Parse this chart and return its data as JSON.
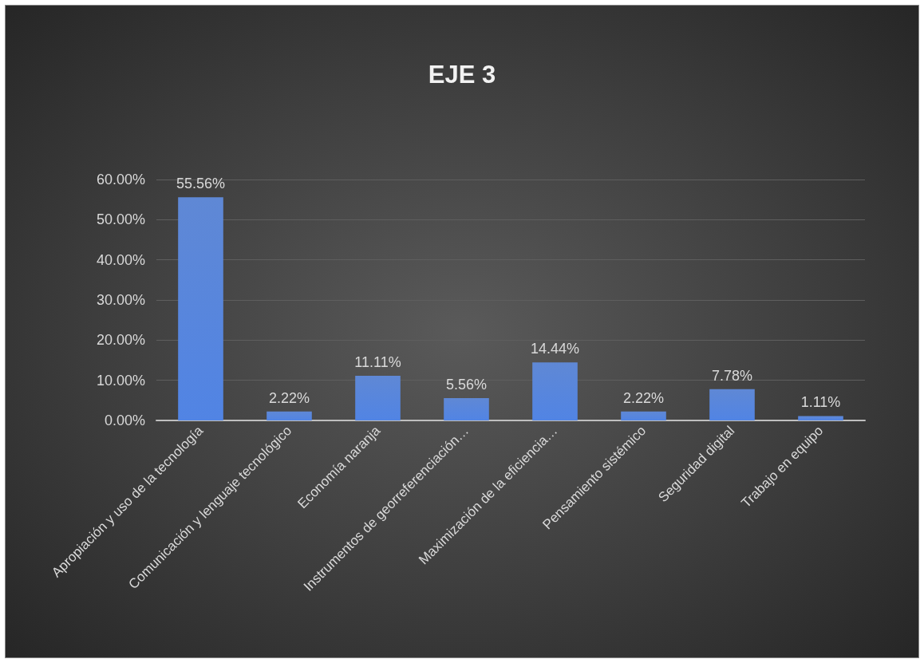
{
  "chart_data": {
    "type": "bar",
    "title": "EJE 3",
    "categories": [
      "Apropiación y uso de la tecnología",
      "Comunicación y lenguaje tecnológico",
      "Economía naranja",
      "Instrumentos de georreferenciación…",
      "Maximización de la eficiencia…",
      "Pensamiento sistémico",
      "Seguridad digital",
      "Trabajo en equipo"
    ],
    "values": [
      55.56,
      2.22,
      11.11,
      5.56,
      14.44,
      2.22,
      7.78,
      1.11
    ],
    "value_labels": [
      "55.56%",
      "2.22%",
      "11.11%",
      "5.56%",
      "14.44%",
      "2.22%",
      "7.78%",
      "1.11%"
    ],
    "color": "#4a78d0",
    "ylim": [
      0,
      60
    ],
    "yticks": [
      {
        "value": 0,
        "label": "0.00%"
      },
      {
        "value": 10,
        "label": "10.00%"
      },
      {
        "value": 20,
        "label": "20.00%"
      },
      {
        "value": 30,
        "label": "30.00%"
      },
      {
        "value": 40,
        "label": "40.00%"
      },
      {
        "value": 50,
        "label": "50.00%"
      },
      {
        "value": 60,
        "label": "60.00%"
      }
    ],
    "grid": "y"
  }
}
